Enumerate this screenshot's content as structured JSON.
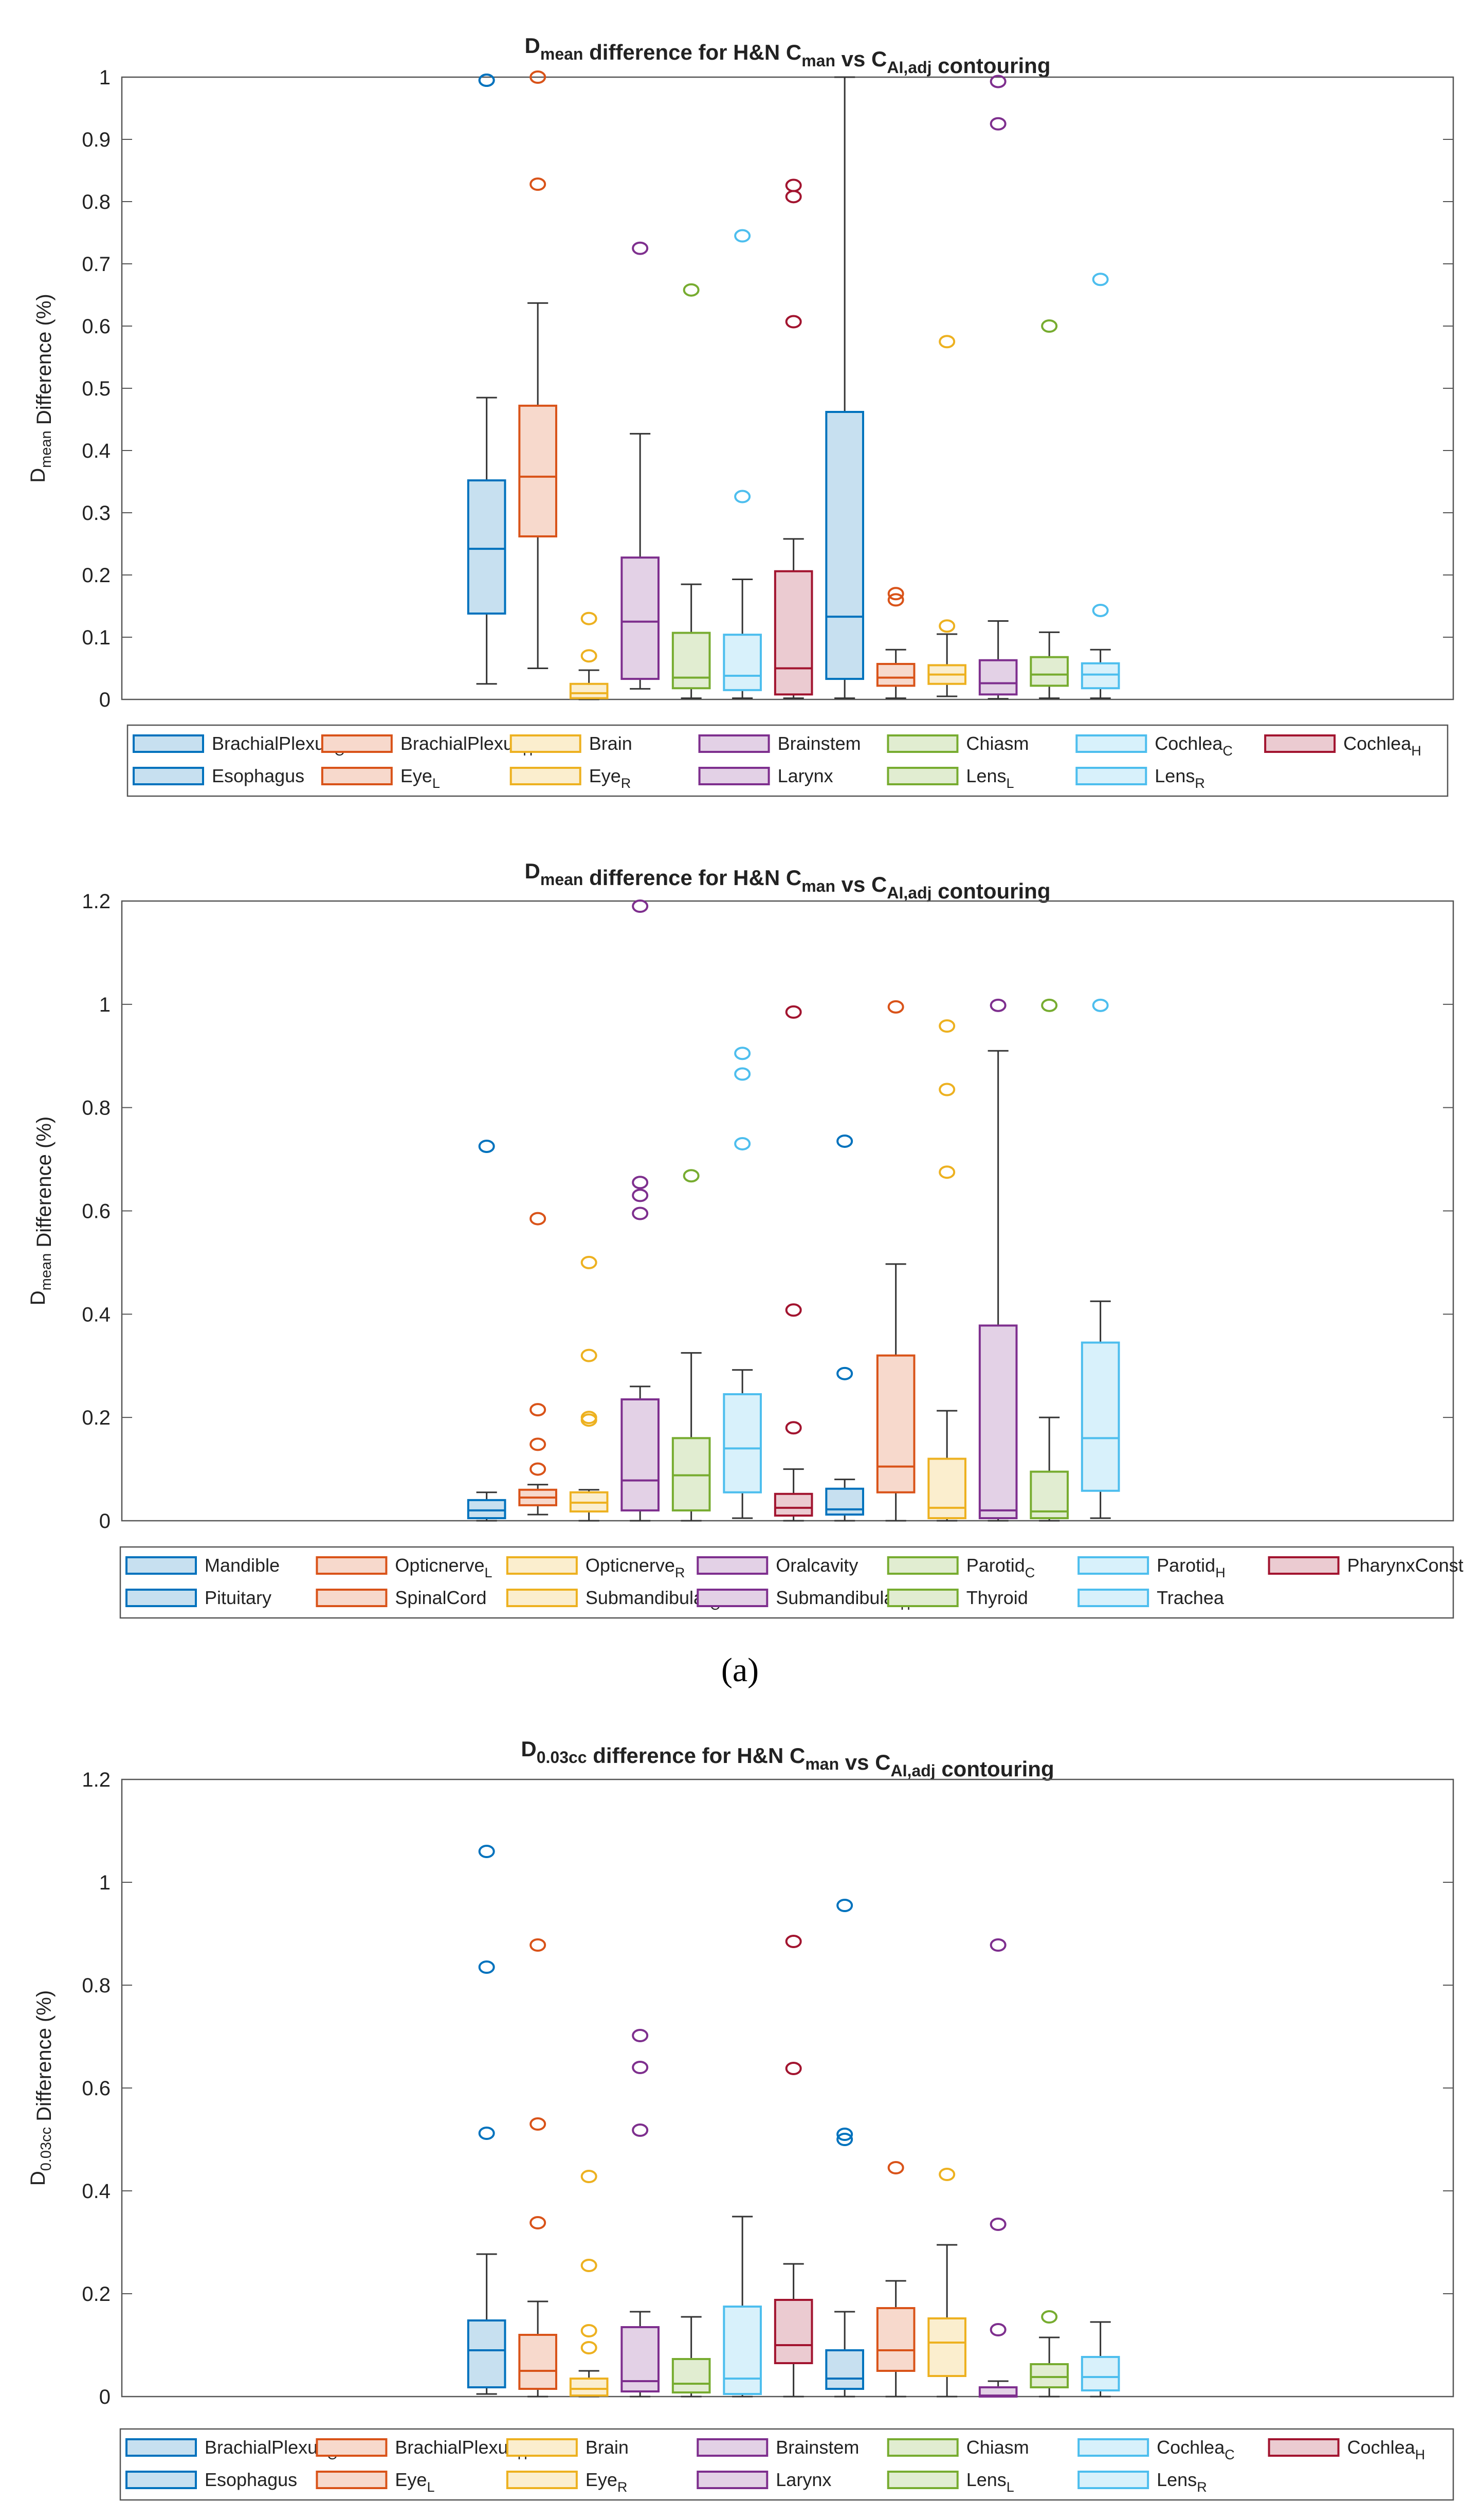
{
  "panel_labels": {
    "a": "(a)"
  },
  "chart_data": [
    {
      "type": "box",
      "title": "D_mean difference for H&N C_man vs C_AI,adj contouring",
      "ylabel": "D_mean Difference (%)",
      "ylim": [
        0,
        1
      ],
      "yticks": [
        "0",
        "0.1",
        "0.2",
        "0.3",
        "0.4",
        "0.5",
        "0.6",
        "0.7",
        "0.8",
        "0.9",
        "1"
      ],
      "grid": false,
      "legend_position": "bottom",
      "series": [
        {
          "name": "BrachialPlexus_C",
          "color": "#0072BD",
          "q1": 0.138,
          "median": 0.242,
          "q3": 0.352,
          "whisker_low": 0.025,
          "whisker_high": 0.485,
          "outliers": [
            0.995,
            0.995
          ]
        },
        {
          "name": "BrachialPlexus_H",
          "color": "#D95319",
          "q1": 0.262,
          "median": 0.358,
          "q3": 0.472,
          "whisker_low": 0.05,
          "whisker_high": 0.637,
          "outliers": [
            0.828,
            1.0
          ]
        },
        {
          "name": "Brain",
          "color": "#EDB120",
          "q1": 0.002,
          "median": 0.01,
          "q3": 0.025,
          "whisker_low": 0.0,
          "whisker_high": 0.047,
          "outliers": [
            0.07,
            0.13
          ]
        },
        {
          "name": "Brainstem",
          "color": "#7E2F8E",
          "q1": 0.033,
          "median": 0.125,
          "q3": 0.228,
          "whisker_low": 0.017,
          "whisker_high": 0.427,
          "outliers": [
            0.725
          ]
        },
        {
          "name": "Chiasm",
          "color": "#77AC30",
          "q1": 0.018,
          "median": 0.035,
          "q3": 0.107,
          "whisker_low": 0.002,
          "whisker_high": 0.185,
          "outliers": [
            0.658
          ]
        },
        {
          "name": "Cochlea_C",
          "color": "#4DBEEE",
          "q1": 0.015,
          "median": 0.038,
          "q3": 0.104,
          "whisker_low": 0.002,
          "whisker_high": 0.193,
          "outliers": [
            0.326,
            0.745
          ]
        },
        {
          "name": "Cochlea_H",
          "color": "#A2142F",
          "q1": 0.008,
          "median": 0.05,
          "q3": 0.206,
          "whisker_low": 0.002,
          "whisker_high": 0.258,
          "outliers": [
            0.607,
            0.808,
            0.826
          ]
        },
        {
          "name": "Esophagus",
          "color": "#0072BD",
          "q1": 0.033,
          "median": 0.133,
          "q3": 0.462,
          "whisker_low": 0.002,
          "whisker_high": 1.0,
          "outliers": []
        },
        {
          "name": "Eye_L",
          "color": "#D95319",
          "q1": 0.022,
          "median": 0.035,
          "q3": 0.057,
          "whisker_low": 0.002,
          "whisker_high": 0.08,
          "outliers": [
            0.16,
            0.17
          ]
        },
        {
          "name": "Eye_R",
          "color": "#EDB120",
          "q1": 0.025,
          "median": 0.04,
          "q3": 0.055,
          "whisker_low": 0.005,
          "whisker_high": 0.105,
          "outliers": [
            0.118,
            0.575
          ]
        },
        {
          "name": "Larynx",
          "color": "#7E2F8E",
          "q1": 0.008,
          "median": 0.026,
          "q3": 0.063,
          "whisker_low": 0.001,
          "whisker_high": 0.126,
          "outliers": [
            0.925,
            0.993
          ]
        },
        {
          "name": "Lens_L",
          "color": "#77AC30",
          "q1": 0.022,
          "median": 0.04,
          "q3": 0.068,
          "whisker_low": 0.002,
          "whisker_high": 0.108,
          "outliers": [
            0.6
          ]
        },
        {
          "name": "Lens_R",
          "color": "#4DBEEE",
          "q1": 0.018,
          "median": 0.04,
          "q3": 0.058,
          "whisker_low": 0.002,
          "whisker_high": 0.08,
          "outliers": [
            0.143,
            0.675
          ]
        }
      ]
    },
    {
      "type": "box",
      "title": "D_mean difference for H&N C_man vs C_AI,adj contouring",
      "ylabel": "D_mean Difference (%)",
      "ylim": [
        0,
        1.2
      ],
      "yticks": [
        "0",
        "0.2",
        "0.4",
        "0.6",
        "0.8",
        "1",
        "1.2"
      ],
      "grid": false,
      "legend_position": "bottom",
      "series": [
        {
          "name": "Mandible",
          "color": "#0072BD",
          "q1": 0.005,
          "median": 0.02,
          "q3": 0.04,
          "whisker_low": 0.0,
          "whisker_high": 0.055,
          "outliers": [
            0.725
          ]
        },
        {
          "name": "Opticnerve_L",
          "color": "#D95319",
          "q1": 0.03,
          "median": 0.045,
          "q3": 0.06,
          "whisker_low": 0.012,
          "whisker_high": 0.07,
          "outliers": [
            0.1,
            0.148,
            0.215,
            0.585
          ]
        },
        {
          "name": "Opticnerve_R",
          "color": "#EDB120",
          "q1": 0.018,
          "median": 0.035,
          "q3": 0.055,
          "whisker_low": 0.0,
          "whisker_high": 0.06,
          "outliers": [
            0.195,
            0.2,
            0.32,
            0.5
          ]
        },
        {
          "name": "Oralcavity",
          "color": "#7E2F8E",
          "q1": 0.02,
          "median": 0.078,
          "q3": 0.235,
          "whisker_low": 0.0,
          "whisker_high": 0.26,
          "outliers": [
            0.595,
            0.63,
            0.655,
            1.19
          ]
        },
        {
          "name": "Parotid_C",
          "color": "#77AC30",
          "q1": 0.02,
          "median": 0.088,
          "q3": 0.16,
          "whisker_low": 0.0,
          "whisker_high": 0.325,
          "outliers": [
            0.668
          ]
        },
        {
          "name": "Parotid_H",
          "color": "#4DBEEE",
          "q1": 0.055,
          "median": 0.14,
          "q3": 0.245,
          "whisker_low": 0.005,
          "whisker_high": 0.292,
          "outliers": [
            0.73,
            0.865,
            0.905
          ]
        },
        {
          "name": "PharynxConst",
          "color": "#A2142F",
          "q1": 0.01,
          "median": 0.025,
          "q3": 0.052,
          "whisker_low": 0.0,
          "whisker_high": 0.1,
          "outliers": [
            0.18,
            0.408,
            0.985
          ]
        },
        {
          "name": "Pituitary",
          "color": "#0072BD",
          "q1": 0.012,
          "median": 0.022,
          "q3": 0.062,
          "whisker_low": 0.0,
          "whisker_high": 0.08,
          "outliers": [
            0.285,
            0.735
          ]
        },
        {
          "name": "SpinalCord",
          "color": "#D95319",
          "q1": 0.055,
          "median": 0.105,
          "q3": 0.32,
          "whisker_low": 0.0,
          "whisker_high": 0.497,
          "outliers": [
            0.995
          ]
        },
        {
          "name": "Submandibular_C",
          "color": "#EDB120",
          "q1": 0.005,
          "median": 0.025,
          "q3": 0.12,
          "whisker_low": 0.0,
          "whisker_high": 0.213,
          "outliers": [
            0.675,
            0.835,
            0.958
          ]
        },
        {
          "name": "Submandibular_H",
          "color": "#7E2F8E",
          "q1": 0.005,
          "median": 0.02,
          "q3": 0.378,
          "whisker_low": 0.0,
          "whisker_high": 0.91,
          "outliers": [
            0.998
          ]
        },
        {
          "name": "Thyroid",
          "color": "#77AC30",
          "q1": 0.005,
          "median": 0.018,
          "q3": 0.095,
          "whisker_low": 0.0,
          "whisker_high": 0.2,
          "outliers": [
            0.998
          ]
        },
        {
          "name": "Trachea",
          "color": "#4DBEEE",
          "q1": 0.058,
          "median": 0.16,
          "q3": 0.345,
          "whisker_low": 0.005,
          "whisker_high": 0.425,
          "outliers": [
            0.998
          ]
        }
      ]
    },
    {
      "type": "box",
      "title": "D_0.03cc difference for H&N C_man vs C_AI,adj contouring",
      "ylabel": "D_0.03cc Difference (%)",
      "ylim": [
        0,
        1.2
      ],
      "yticks": [
        "0",
        "0.2",
        "0.4",
        "0.6",
        "0.8",
        "1",
        "1.2"
      ],
      "grid": false,
      "legend_position": "bottom",
      "series": [
        {
          "name": "BrachialPlexus_C",
          "color": "#0072BD",
          "q1": 0.018,
          "median": 0.09,
          "q3": 0.148,
          "whisker_low": 0.005,
          "whisker_high": 0.277,
          "outliers": [
            0.512,
            0.835,
            1.06
          ]
        },
        {
          "name": "BrachialPlexus_H",
          "color": "#D95319",
          "q1": 0.015,
          "median": 0.05,
          "q3": 0.12,
          "whisker_low": 0.0,
          "whisker_high": 0.185,
          "outliers": [
            0.338,
            0.53,
            0.878
          ]
        },
        {
          "name": "Brain",
          "color": "#EDB120",
          "q1": 0.002,
          "median": 0.015,
          "q3": 0.035,
          "whisker_low": 0.0,
          "whisker_high": 0.05,
          "outliers": [
            0.095,
            0.128,
            0.255,
            0.428
          ]
        },
        {
          "name": "Brainstem",
          "color": "#7E2F8E",
          "q1": 0.01,
          "median": 0.03,
          "q3": 0.135,
          "whisker_low": 0.0,
          "whisker_high": 0.165,
          "outliers": [
            0.518,
            0.64,
            0.702
          ]
        },
        {
          "name": "Chiasm",
          "color": "#77AC30",
          "q1": 0.008,
          "median": 0.025,
          "q3": 0.073,
          "whisker_low": 0.0,
          "whisker_high": 0.155,
          "outliers": []
        },
        {
          "name": "Cochlea_C",
          "color": "#4DBEEE",
          "q1": 0.005,
          "median": 0.035,
          "q3": 0.175,
          "whisker_low": 0.0,
          "whisker_high": 0.35,
          "outliers": []
        },
        {
          "name": "Cochlea_H",
          "color": "#A2142F",
          "q1": 0.065,
          "median": 0.1,
          "q3": 0.188,
          "whisker_low": 0.0,
          "whisker_high": 0.258,
          "outliers": [
            0.638,
            0.885
          ]
        },
        {
          "name": "Esophagus",
          "color": "#0072BD",
          "q1": 0.015,
          "median": 0.035,
          "q3": 0.09,
          "whisker_low": 0.0,
          "whisker_high": 0.165,
          "outliers": [
            0.5,
            0.51,
            0.955
          ]
        },
        {
          "name": "Eye_L",
          "color": "#D95319",
          "q1": 0.05,
          "median": 0.09,
          "q3": 0.172,
          "whisker_low": 0.0,
          "whisker_high": 0.225,
          "outliers": [
            0.445
          ]
        },
        {
          "name": "Eye_R",
          "color": "#EDB120",
          "q1": 0.04,
          "median": 0.105,
          "q3": 0.152,
          "whisker_low": 0.0,
          "whisker_high": 0.295,
          "outliers": [
            0.432
          ]
        },
        {
          "name": "Larynx",
          "color": "#7E2F8E",
          "q1": 0.0,
          "median": 0.002,
          "q3": 0.018,
          "whisker_low": 0.0,
          "whisker_high": 0.03,
          "outliers": [
            0.13,
            0.335,
            0.878
          ]
        },
        {
          "name": "Lens_L",
          "color": "#77AC30",
          "q1": 0.018,
          "median": 0.038,
          "q3": 0.063,
          "whisker_low": 0.0,
          "whisker_high": 0.115,
          "outliers": [
            0.155
          ]
        },
        {
          "name": "Lens_R",
          "color": "#4DBEEE",
          "q1": 0.012,
          "median": 0.038,
          "q3": 0.077,
          "whisker_low": 0.0,
          "whisker_high": 0.145,
          "outliers": []
        }
      ]
    }
  ]
}
